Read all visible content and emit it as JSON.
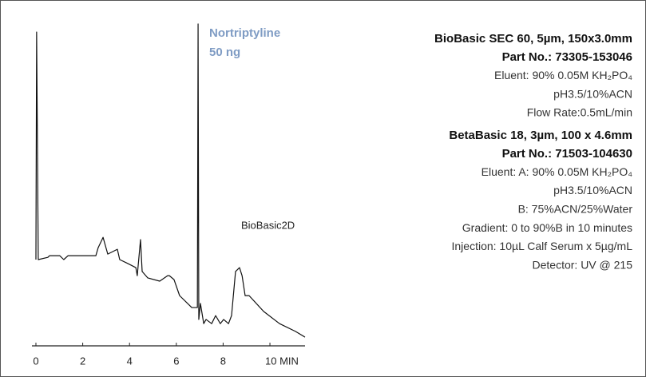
{
  "chart_data": {
    "type": "line",
    "annotations": [
      "Nortriptyline",
      "50 ng",
      "BioBasic2D"
    ],
    "x": [
      0,
      0.03,
      0.1,
      0.51,
      0.58,
      1.02,
      1.19,
      1.37,
      2.56,
      2.66,
      2.87,
      3.07,
      3.48,
      3.58,
      3.92,
      4.27,
      4.33,
      4.47,
      4.54,
      4.78,
      5.29,
      5.63,
      5.7,
      5.9,
      6.14,
      6.66,
      6.9,
      6.93,
      6.96,
      7.03,
      7.17,
      7.27,
      7.51,
      7.68,
      7.88,
      8.02,
      8.23,
      8.36,
      8.53,
      8.7,
      8.81,
      8.94,
      9.11,
      9.73,
      10.41,
      11.09,
      11.5
    ],
    "values": [
      26.8,
      97.5,
      26.8,
      27.5,
      28.0,
      28.0,
      26.8,
      28.0,
      28.0,
      30.5,
      33.7,
      28.5,
      30.0,
      26.8,
      25.6,
      24.3,
      21.8,
      33.0,
      23.1,
      21.1,
      20.1,
      21.8,
      21.8,
      20.6,
      15.6,
      11.9,
      11.9,
      100,
      8.2,
      13.2,
      6.9,
      8.2,
      6.9,
      9.4,
      6.9,
      8.2,
      6.9,
      9.4,
      23.1,
      24.3,
      21.8,
      15.6,
      15.6,
      10.7,
      6.9,
      4.5,
      2.7
    ],
    "color": "#111111",
    "xlim": [
      -0.17,
      11.5
    ],
    "ylim": [
      0,
      100
    ],
    "xticks": [
      0,
      2,
      4,
      6,
      8,
      {
        "value": 10,
        "label": "10 MIN"
      }
    ]
  },
  "columns": [
    {
      "name": "BioBasic SEC 60, 5µm, 150x3.0mm",
      "part_no": "Part No.: 73305-153046",
      "conditions": [
        "Eluent: 90% 0.05M KH₂PO₄",
        "pH3.5/10%ACN",
        "Flow Rate:0.5mL/min"
      ]
    },
    {
      "name": "BetaBasic 18, 3µm, 100 x 4.6mm",
      "part_no": "Part No.: 71503-104630",
      "conditions": [
        "Eluent: A: 90% 0.05M KH₂PO₄",
        "pH3.5/10%ACN",
        "B: 75%ACN/25%Water",
        "Gradient: 0 to 90%B in 10 minutes",
        "Injection: 10µL Calf Serum x 5µg/mL",
        "Detector: UV @ 215"
      ]
    }
  ]
}
